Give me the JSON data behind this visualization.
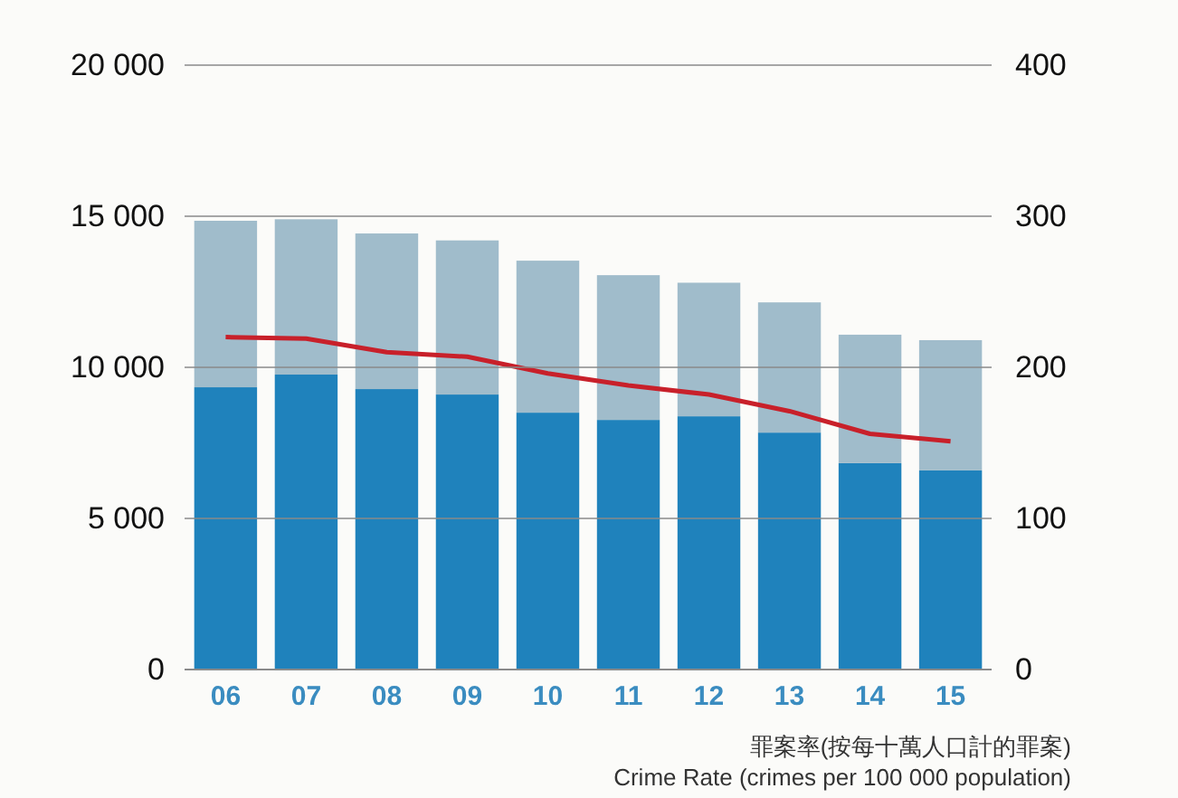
{
  "chart_data": {
    "type": "bar",
    "stacked": true,
    "categories": [
      "06",
      "07",
      "08",
      "09",
      "10",
      "11",
      "12",
      "13",
      "14",
      "15"
    ],
    "series": [
      {
        "color": "#1f82bc",
        "values": [
          9340,
          9760,
          9280,
          9100,
          8500,
          8260,
          8380,
          7840,
          6830,
          6590
        ]
      },
      {
        "color": "#a0bccb",
        "values": [
          5510,
          5140,
          5150,
          5100,
          5030,
          4790,
          4420,
          4310,
          4250,
          4310
        ]
      },
      {
        "type": "line",
        "axis": "y2",
        "color": "#c8202a",
        "values": [
          220,
          219,
          210,
          207,
          196,
          188,
          182,
          171,
          156,
          151
        ]
      }
    ],
    "ylim": [
      0,
      20000
    ],
    "yticks": [
      {
        "value": 0,
        "label": "0"
      },
      {
        "value": 5000,
        "label": "5 000"
      },
      {
        "value": 10000,
        "label": "10 000"
      },
      {
        "value": 15000,
        "label": "15 000"
      },
      {
        "value": 20000,
        "label": "20 000"
      }
    ],
    "y2lim": [
      0,
      400
    ],
    "y2ticks": [
      0,
      100,
      200,
      300,
      400
    ],
    "grid": "y",
    "marker": "none",
    "line_style": "solid",
    "annotations": [
      "罪案率(按每十萬人口計的罪案)",
      "Crime Rate  (crimes per 100 000 population)"
    ]
  }
}
